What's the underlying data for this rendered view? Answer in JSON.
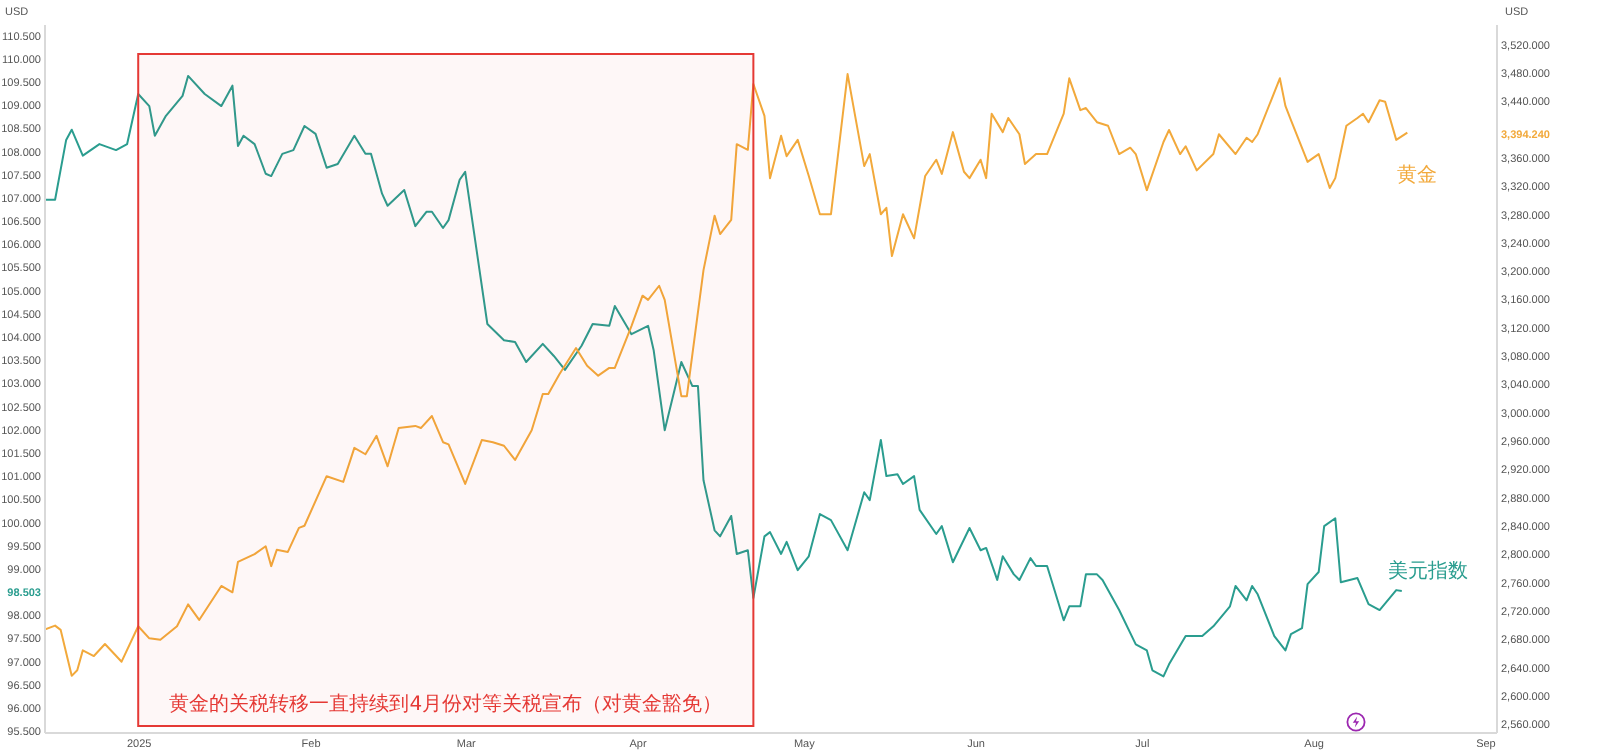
{
  "chart_data": {
    "type": "line",
    "ylabel": "USD",
    "y2label": "USD",
    "xlim": [
      "2024-12-15",
      "2025-09-03"
    ],
    "xticks": [
      {
        "value": "2025-01-01",
        "label": "2025"
      },
      {
        "value": "2025-02-01",
        "label": "Feb"
      },
      {
        "value": "2025-03-01",
        "label": "Mar"
      },
      {
        "value": "2025-04-01",
        "label": "Apr"
      },
      {
        "value": "2025-05-01",
        "label": "May"
      },
      {
        "value": "2025-06-01",
        "label": "Jun"
      },
      {
        "value": "2025-07-01",
        "label": "Jul"
      },
      {
        "value": "2025-08-01",
        "label": "Aug"
      },
      {
        "value": "2025-09-01",
        "label": "Sep"
      }
    ],
    "ylim": [
      95.46,
      110.73
    ],
    "yticks": [
      {
        "value": 95.5,
        "label": "95.500"
      },
      {
        "value": 96,
        "label": "96.000"
      },
      {
        "value": 96.5,
        "label": "96.500"
      },
      {
        "value": 97,
        "label": "97.000"
      },
      {
        "value": 97.5,
        "label": "97.500"
      },
      {
        "value": 98,
        "label": "98.000"
      },
      {
        "value": 98.503,
        "label": "98.503"
      },
      {
        "value": 99,
        "label": "99.000"
      },
      {
        "value": 99.5,
        "label": "99.500"
      },
      {
        "value": 100,
        "label": "100.000"
      },
      {
        "value": 100.5,
        "label": "100.500"
      },
      {
        "value": 101,
        "label": "101.000"
      },
      {
        "value": 101.5,
        "label": "101.500"
      },
      {
        "value": 102,
        "label": "102.000"
      },
      {
        "value": 102.5,
        "label": "102.500"
      },
      {
        "value": 103,
        "label": "103.000"
      },
      {
        "value": 103.5,
        "label": "103.500"
      },
      {
        "value": 104,
        "label": "104.000"
      },
      {
        "value": 104.5,
        "label": "104.500"
      },
      {
        "value": 105,
        "label": "105.000"
      },
      {
        "value": 105.5,
        "label": "105.500"
      },
      {
        "value": 106,
        "label": "106.000"
      },
      {
        "value": 106.5,
        "label": "106.500"
      },
      {
        "value": 107,
        "label": "107.000"
      },
      {
        "value": 107.5,
        "label": "107.500"
      },
      {
        "value": 108,
        "label": "108.000"
      },
      {
        "value": 108.5,
        "label": "108.500"
      },
      {
        "value": 109,
        "label": "109.000"
      },
      {
        "value": 109.5,
        "label": "109.500"
      },
      {
        "value": 110,
        "label": "110.000"
      },
      {
        "value": 110.5,
        "label": "110.500"
      }
    ],
    "y2lim": [
      2547.7,
      3547.7
    ],
    "y2ticks": [
      {
        "value": 2560,
        "label": "2,560.000"
      },
      {
        "value": 2600,
        "label": "2,600.000"
      },
      {
        "value": 2640,
        "label": "2,640.000"
      },
      {
        "value": 2680,
        "label": "2,680.000"
      },
      {
        "value": 2720,
        "label": "2,720.000"
      },
      {
        "value": 2760,
        "label": "2,760.000"
      },
      {
        "value": 2800,
        "label": "2,800.000"
      },
      {
        "value": 2840,
        "label": "2,840.000"
      },
      {
        "value": 2880,
        "label": "2,880.000"
      },
      {
        "value": 2920,
        "label": "2,920.000"
      },
      {
        "value": 2960,
        "label": "2,960.000"
      },
      {
        "value": 3000,
        "label": "3,000.000"
      },
      {
        "value": 3040,
        "label": "3,040.000"
      },
      {
        "value": 3080,
        "label": "3,080.000"
      },
      {
        "value": 3120,
        "label": "3,120.000"
      },
      {
        "value": 3160,
        "label": "3,160.000"
      },
      {
        "value": 3200,
        "label": "3,200.000"
      },
      {
        "value": 3240,
        "label": "3,240.000"
      },
      {
        "value": 3280,
        "label": "3,280.000"
      },
      {
        "value": 3320,
        "label": "3,320.000"
      },
      {
        "value": 3360,
        "label": "3,360.000"
      },
      {
        "value": 3394.24,
        "label": "3,394.240"
      },
      {
        "value": 3440,
        "label": "3,440.000"
      },
      {
        "value": 3480,
        "label": "3,480.000"
      },
      {
        "value": 3520,
        "label": "3,520.000"
      }
    ],
    "bands": [
      {
        "axis": "x",
        "from": "2025-01-01",
        "to": "2025-04-22",
        "label": "黄金的关税转移一直持续到4月份对等关税宣布（对黄金豁免）",
        "color": "#e53935"
      }
    ],
    "series": [
      {
        "name": "美元指数",
        "color": "#2a9d8f",
        "x": [
          "2024-12-15",
          "2024-12-17",
          "2024-12-19",
          "2024-12-20",
          "2024-12-22",
          "2024-12-25",
          "2024-12-28",
          "2024-12-30",
          "2025-01-01",
          "2025-01-03",
          "2025-01-04",
          "2025-01-06",
          "2025-01-09",
          "2025-01-10",
          "2025-01-13",
          "2025-01-16",
          "2025-01-18",
          "2025-01-19",
          "2025-01-20",
          "2025-01-22",
          "2025-01-24",
          "2025-01-25",
          "2025-01-27",
          "2025-01-29",
          "2025-01-31",
          "2025-02-02",
          "2025-02-04",
          "2025-02-06",
          "2025-02-09",
          "2025-02-11",
          "2025-02-12",
          "2025-02-14",
          "2025-02-15",
          "2025-02-18",
          "2025-02-20",
          "2025-02-22",
          "2025-02-23",
          "2025-02-25",
          "2025-02-26",
          "2025-02-28",
          "2025-03-01",
          "2025-03-05",
          "2025-03-08",
          "2025-03-10",
          "2025-03-12",
          "2025-03-15",
          "2025-03-17",
          "2025-03-19",
          "2025-03-22",
          "2025-03-24",
          "2025-03-27",
          "2025-03-28",
          "2025-03-31",
          "2025-04-03",
          "2025-04-04",
          "2025-04-06",
          "2025-04-09",
          "2025-04-11",
          "2025-04-12",
          "2025-04-13",
          "2025-04-15",
          "2025-04-16",
          "2025-04-18",
          "2025-04-19",
          "2025-04-21",
          "2025-04-22",
          "2025-04-24",
          "2025-04-25",
          "2025-04-27",
          "2025-04-28",
          "2025-04-30",
          "2025-05-02",
          "2025-05-04",
          "2025-05-06",
          "2025-05-09",
          "2025-05-12",
          "2025-05-13",
          "2025-05-15",
          "2025-05-16",
          "2025-05-18",
          "2025-05-19",
          "2025-05-21",
          "2025-05-22",
          "2025-05-25",
          "2025-05-26",
          "2025-05-28",
          "2025-05-31",
          "2025-06-02",
          "2025-06-03",
          "2025-06-05",
          "2025-06-06",
          "2025-06-08",
          "2025-06-09",
          "2025-06-11",
          "2025-06-12",
          "2025-06-14",
          "2025-06-17",
          "2025-06-18",
          "2025-06-20",
          "2025-06-21",
          "2025-06-23",
          "2025-06-24",
          "2025-06-27",
          "2025-06-30",
          "2025-07-02",
          "2025-07-03",
          "2025-07-05",
          "2025-07-06",
          "2025-07-09",
          "2025-07-12",
          "2025-07-14",
          "2025-07-17",
          "2025-07-18",
          "2025-07-20",
          "2025-07-21",
          "2025-07-22",
          "2025-07-25",
          "2025-07-27",
          "2025-07-28",
          "2025-07-30",
          "2025-07-31",
          "2025-08-02",
          "2025-08-03",
          "2025-08-05",
          "2025-08-06",
          "2025-08-09",
          "2025-08-11",
          "2025-08-13",
          "2025-08-16",
          "2025-08-17"
        ],
        "values": [
          106.94,
          106.94,
          108.23,
          108.45,
          107.89,
          108.14,
          108.01,
          108.14,
          109.22,
          108.96,
          108.32,
          108.75,
          109.18,
          109.61,
          109.22,
          108.96,
          109.4,
          108.1,
          108.32,
          108.14,
          107.5,
          107.45,
          107.93,
          108.01,
          108.53,
          108.36,
          107.63,
          107.71,
          108.32,
          107.93,
          107.93,
          107.07,
          106.81,
          107.15,
          106.37,
          106.68,
          106.68,
          106.33,
          106.5,
          107.37,
          107.54,
          104.26,
          103.91,
          103.87,
          103.44,
          103.83,
          103.57,
          103.27,
          103.79,
          104.26,
          104.22,
          104.65,
          104.04,
          104.22,
          103.7,
          101.97,
          103.44,
          102.92,
          102.92,
          100.89,
          99.81,
          99.68,
          100.12,
          99.3,
          99.38,
          98.35,
          99.68,
          99.77,
          99.3,
          99.56,
          98.95,
          99.25,
          100.16,
          100.03,
          99.38,
          100.63,
          100.46,
          101.76,
          100.98,
          101.02,
          100.81,
          100.98,
          100.25,
          99.73,
          99.9,
          99.12,
          99.86,
          99.38,
          99.43,
          98.74,
          99.25,
          98.86,
          98.74,
          99.21,
          99.04,
          99.04,
          97.87,
          98.17,
          98.17,
          98.86,
          98.86,
          98.74,
          98.09,
          97.35,
          97.22,
          96.79,
          96.66,
          96.92,
          97.53,
          97.53,
          97.74,
          98.17,
          98.61,
          98.3,
          98.61,
          98.43,
          97.53,
          97.22,
          97.57,
          97.7,
          98.65,
          98.91,
          99.9,
          100.07,
          98.69,
          98.78,
          98.22,
          98.09,
          98.52,
          98.503
        ]
      },
      {
        "name": "黄金",
        "color": "#f2a93b",
        "axis": "y2",
        "x": [
          "2024-12-15",
          "2024-12-17",
          "2024-12-18",
          "2024-12-20",
          "2024-12-21",
          "2024-12-22",
          "2024-12-24",
          "2024-12-26",
          "2024-12-29",
          "2025-01-01",
          "2025-01-03",
          "2025-01-05",
          "2025-01-08",
          "2025-01-10",
          "2025-01-12",
          "2025-01-16",
          "2025-01-18",
          "2025-01-19",
          "2025-01-22",
          "2025-01-24",
          "2025-01-25",
          "2025-01-26",
          "2025-01-28",
          "2025-01-30",
          "2025-01-31",
          "2025-02-04",
          "2025-02-07",
          "2025-02-09",
          "2025-02-11",
          "2025-02-13",
          "2025-02-15",
          "2025-02-17",
          "2025-02-20",
          "2025-02-21",
          "2025-02-23",
          "2025-02-25",
          "2025-02-26",
          "2025-03-01",
          "2025-03-04",
          "2025-03-06",
          "2025-03-08",
          "2025-03-10",
          "2025-03-13",
          "2025-03-15",
          "2025-03-16",
          "2025-03-18",
          "2025-03-21",
          "2025-03-23",
          "2025-03-25",
          "2025-03-27",
          "2025-03-28",
          "2025-03-31",
          "2025-04-02",
          "2025-04-03",
          "2025-04-05",
          "2025-04-06",
          "2025-04-09",
          "2025-04-10",
          "2025-04-13",
          "2025-04-15",
          "2025-04-16",
          "2025-04-18",
          "2025-04-19",
          "2025-04-21",
          "2025-04-22",
          "2025-04-24",
          "2025-04-25",
          "2025-04-27",
          "2025-04-28",
          "2025-04-30",
          "2025-05-02",
          "2025-05-04",
          "2025-05-06",
          "2025-05-09",
          "2025-05-12",
          "2025-05-13",
          "2025-05-15",
          "2025-05-16",
          "2025-05-17",
          "2025-05-19",
          "2025-05-21",
          "2025-05-23",
          "2025-05-25",
          "2025-05-26",
          "2025-05-28",
          "2025-05-30",
          "2025-05-31",
          "2025-06-02",
          "2025-06-03",
          "2025-06-04",
          "2025-06-06",
          "2025-06-07",
          "2025-06-09",
          "2025-06-10",
          "2025-06-12",
          "2025-06-14",
          "2025-06-17",
          "2025-06-18",
          "2025-06-20",
          "2025-06-21",
          "2025-06-23",
          "2025-06-25",
          "2025-06-27",
          "2025-06-29",
          "2025-06-30",
          "2025-07-02",
          "2025-07-05",
          "2025-07-06",
          "2025-07-08",
          "2025-07-09",
          "2025-07-11",
          "2025-07-14",
          "2025-07-15",
          "2025-07-18",
          "2025-07-20",
          "2025-07-21",
          "2025-07-22",
          "2025-07-26",
          "2025-07-27",
          "2025-07-28",
          "2025-07-31",
          "2025-08-02",
          "2025-08-04",
          "2025-08-05",
          "2025-08-07",
          "2025-08-09",
          "2025-08-10",
          "2025-08-11",
          "2025-08-13",
          "2025-08-14",
          "2025-08-16",
          "2025-08-18"
        ],
        "values": [
          2692,
          2698,
          2692,
          2627,
          2635,
          2663,
          2655,
          2672,
          2647,
          2697,
          2680,
          2678,
          2697,
          2728,
          2706,
          2754,
          2745,
          2788,
          2799,
          2810,
          2782,
          2805,
          2802,
          2836,
          2839,
          2909,
          2901,
          2949,
          2940,
          2966,
          2923,
          2977,
          2980,
          2977,
          2994,
          2957,
          2954,
          2898,
          2960,
          2957,
          2952,
          2932,
          2974,
          3025,
          3025,
          3053,
          3090,
          3065,
          3051,
          3062,
          3062,
          3121,
          3164,
          3158,
          3178,
          3158,
          3022,
          3022,
          3200,
          3277,
          3251,
          3271,
          3378,
          3370,
          3463,
          3418,
          3330,
          3390,
          3361,
          3384,
          3333,
          3279,
          3279,
          3477,
          3347,
          3364,
          3279,
          3288,
          3220,
          3279,
          3245,
          3333,
          3356,
          3336,
          3395,
          3339,
          3330,
          3356,
          3330,
          3421,
          3395,
          3415,
          3392,
          3350,
          3364,
          3364,
          3421,
          3471,
          3426,
          3429,
          3409,
          3404,
          3364,
          3373,
          3364,
          3313,
          3381,
          3398,
          3364,
          3375,
          3341,
          3364,
          3392,
          3364,
          3387,
          3381,
          3392,
          3471,
          3432,
          3412,
          3353,
          3364,
          3316,
          3330,
          3404,
          3415,
          3421,
          3409,
          3440,
          3438,
          3384,
          3394.24
        ]
      }
    ]
  }
}
